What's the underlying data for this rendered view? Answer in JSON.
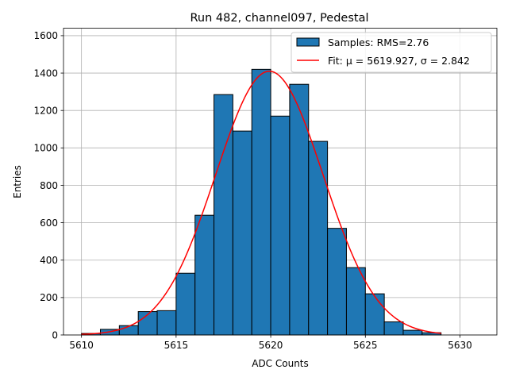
{
  "chart_data": {
    "type": "bar",
    "title": "Run 482, channel097, Pedestal",
    "xlabel": "ADC Counts",
    "ylabel": "Entries",
    "xlim": [
      5609.05,
      5631.95
    ],
    "ylim": [
      0,
      1640
    ],
    "x_ticks": [
      5610,
      5615,
      5620,
      5625,
      5630
    ],
    "y_ticks": [
      0,
      200,
      400,
      600,
      800,
      1000,
      1200,
      1400,
      1600
    ],
    "grid": true,
    "legend_position": "top-right",
    "histogram": {
      "name": "Samples: RMS=2.76",
      "color": "#1f77b4",
      "bin_edges": [
        5610,
        5611,
        5612,
        5613,
        5614,
        5615,
        5616,
        5617,
        5618,
        5619,
        5620,
        5621,
        5622,
        5623,
        5624,
        5625,
        5626,
        5627,
        5628,
        5629
      ],
      "counts": [
        8,
        30,
        50,
        125,
        130,
        330,
        640,
        1285,
        1090,
        1420,
        1170,
        1340,
        1035,
        570,
        360,
        220,
        70,
        25,
        12
      ]
    },
    "fit": {
      "name": "Fit: μ = 5619.927, σ = 2.842",
      "label_prefix": "Fit: ",
      "mu_label": "μ = 5619.927",
      "sep": ", ",
      "sigma_label": "σ = 2.842",
      "color": "#ff0000",
      "mu": 5619.927,
      "sigma": 2.842,
      "amplitude": 1410,
      "x_range": [
        5610,
        5629
      ]
    }
  }
}
